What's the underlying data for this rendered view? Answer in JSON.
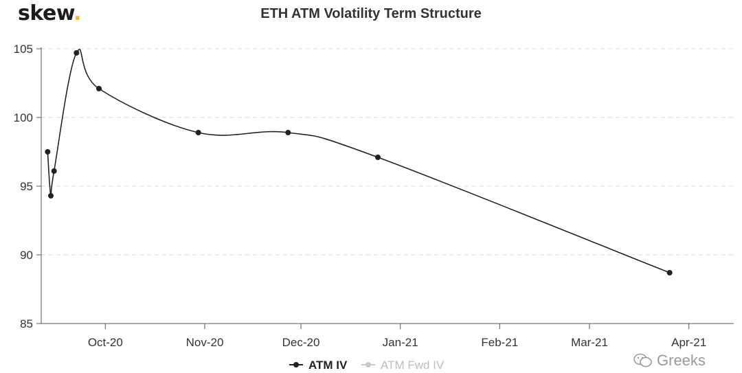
{
  "brand": {
    "name": "skew",
    "dot": "."
  },
  "chart_data": {
    "type": "line",
    "title": "ETH ATM Volatility Term Structure",
    "xlabel": "",
    "ylabel": "",
    "ylim": [
      85,
      105
    ],
    "yticks": [
      85,
      90,
      95,
      100,
      105
    ],
    "xlim": [
      "2020-09-11",
      "2021-04-15"
    ],
    "xticks": [
      {
        "date": "2020-10-01",
        "label": "Oct-20"
      },
      {
        "date": "2020-11-01",
        "label": "Nov-20"
      },
      {
        "date": "2020-12-01",
        "label": "Dec-20"
      },
      {
        "date": "2021-01-01",
        "label": "Jan-21"
      },
      {
        "date": "2021-02-01",
        "label": "Feb-21"
      },
      {
        "date": "2021-03-01",
        "label": "Mar-21"
      },
      {
        "date": "2021-04-01",
        "label": "Apr-21"
      }
    ],
    "grid": "horizontal-dashed",
    "legend_position": "bottom-center",
    "series": [
      {
        "name": "ATM IV",
        "color": "#222222",
        "visible": true,
        "points": [
          {
            "x": "2020-09-13",
            "y": 97.5
          },
          {
            "x": "2020-09-14",
            "y": 94.3
          },
          {
            "x": "2020-09-15",
            "y": 96.1
          },
          {
            "x": "2020-09-22",
            "y": 104.7
          },
          {
            "x": "2020-09-29",
            "y": 102.1
          },
          {
            "x": "2020-10-30",
            "y": 98.9
          },
          {
            "x": "2020-11-27",
            "y": 98.9
          },
          {
            "x": "2020-12-25",
            "y": 97.1
          },
          {
            "x": "2021-03-26",
            "y": 88.7
          }
        ]
      },
      {
        "name": "ATM Fwd IV",
        "color": "#c8c8c8",
        "visible": false,
        "points": []
      }
    ]
  },
  "watermark": {
    "text": "Greeks",
    "icon": "wechat-icon"
  }
}
